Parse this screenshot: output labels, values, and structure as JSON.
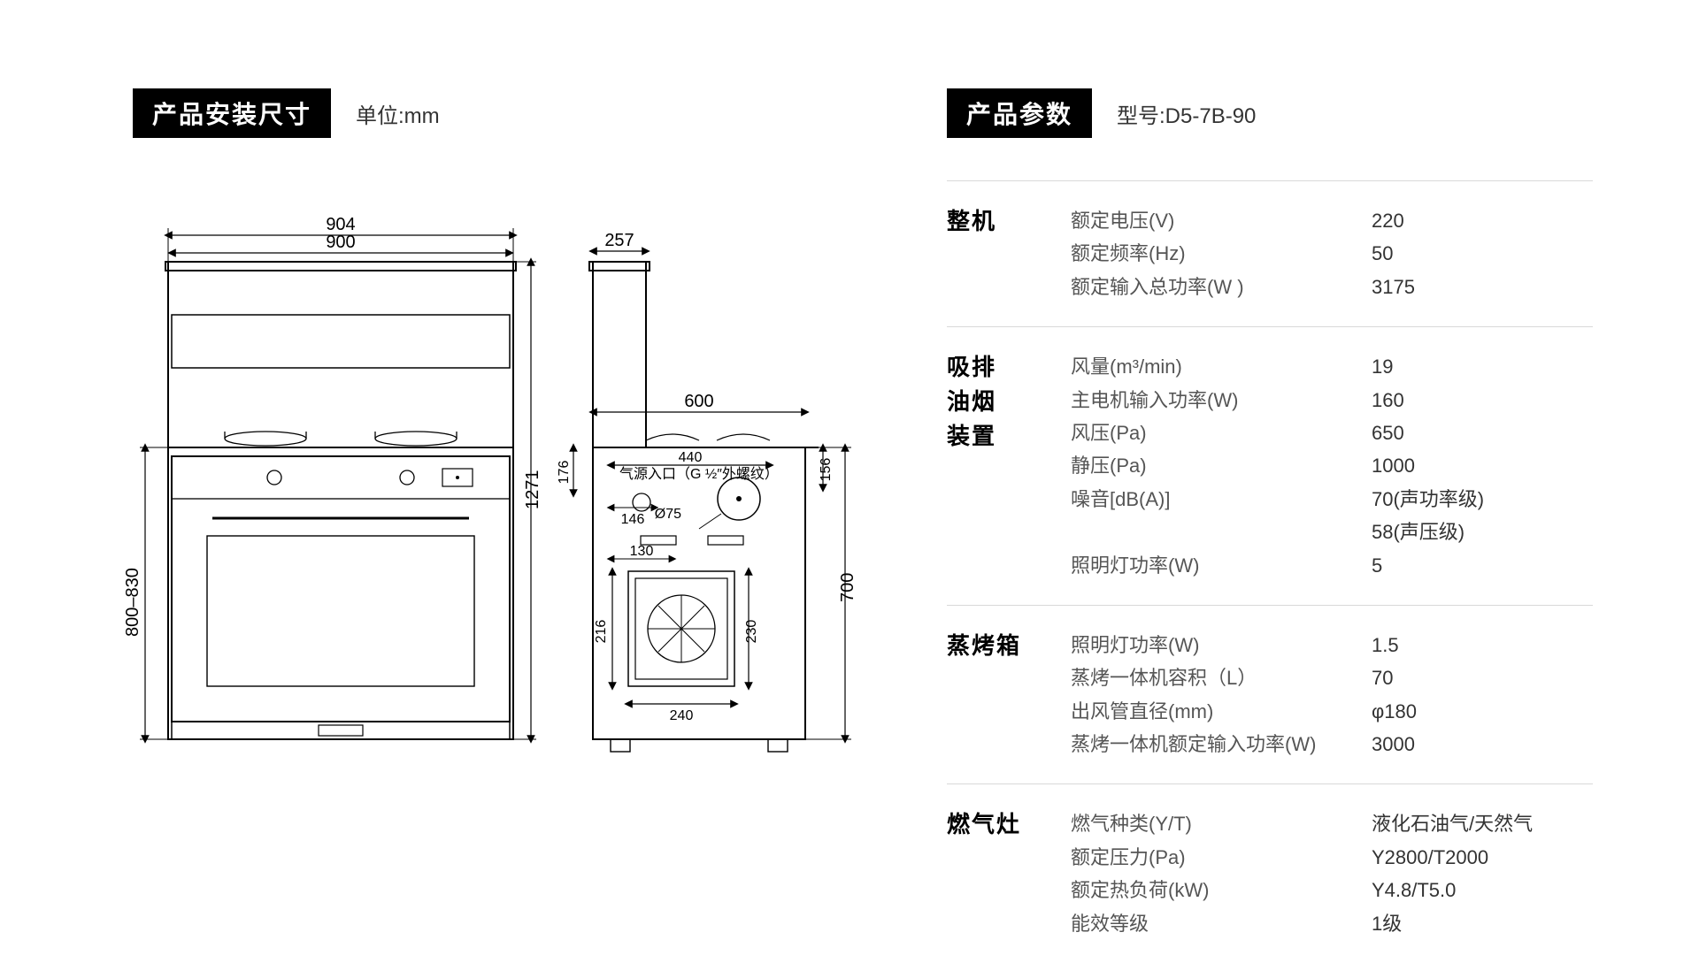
{
  "left": {
    "title": "产品安装尺寸",
    "unit": "单位:mm",
    "dims": {
      "w_outer": "904",
      "w_inner": "900",
      "h_total": "1271",
      "h_cabinet": "800–830",
      "side_top": "257",
      "side_depth": "600",
      "side_h": "700",
      "side_176": "176",
      "side_156": "156",
      "side_440": "440",
      "side_146": "146",
      "side_d75": "Ø75",
      "side_130": "130",
      "side_216": "216",
      "side_240": "240",
      "side_230": "230",
      "gas_label": "气源入口（G ½″外螺纹）"
    }
  },
  "right": {
    "title": "产品参数",
    "model": "型号:D5-7B-90",
    "sections": [
      {
        "cat": "整机",
        "rows": [
          {
            "label": "额定电压(V)",
            "value": "220"
          },
          {
            "label": "额定频率(Hz)",
            "value": "50"
          },
          {
            "label": "额定输入总功率(W )",
            "value": "3175"
          }
        ]
      },
      {
        "cat": "吸排\n油烟\n装置",
        "rows": [
          {
            "label": "风量(m³/min)",
            "value": "19"
          },
          {
            "label": "主电机输入功率(W)",
            "value": "160"
          },
          {
            "label": "风压(Pa)",
            "value": "650"
          },
          {
            "label": "静压(Pa)",
            "value": "1000"
          },
          {
            "label": "噪音[dB(A)]",
            "value": "70(声功率级)\n58(声压级)"
          },
          {
            "label": "照明灯功率(W)",
            "value": "5"
          }
        ]
      },
      {
        "cat": "蒸烤箱",
        "rows": [
          {
            "label": "照明灯功率(W)",
            "value": "1.5"
          },
          {
            "label": "蒸烤一体机容积（L）",
            "value": "70"
          },
          {
            "label": "出风管直径(mm)",
            "value": "φ180"
          },
          {
            "label": "蒸烤一体机额定输入功率(W)",
            "value": "3000"
          }
        ]
      },
      {
        "cat": "燃气灶",
        "rows": [
          {
            "label": "燃气种类(Y/T)",
            "value": "液化石油气/天然气"
          },
          {
            "label": "额定压力(Pa)",
            "value": "Y2800/T2000"
          },
          {
            "label": "额定热负荷(kW)",
            "value": "Y4.8/T5.0"
          },
          {
            "label": "能效等级",
            "value": "1级"
          }
        ]
      }
    ]
  },
  "colors": {
    "tag_bg": "#000000",
    "tag_fg": "#ffffff",
    "text": "#333333",
    "rule": "#d9d9d9",
    "line": "#000000"
  }
}
